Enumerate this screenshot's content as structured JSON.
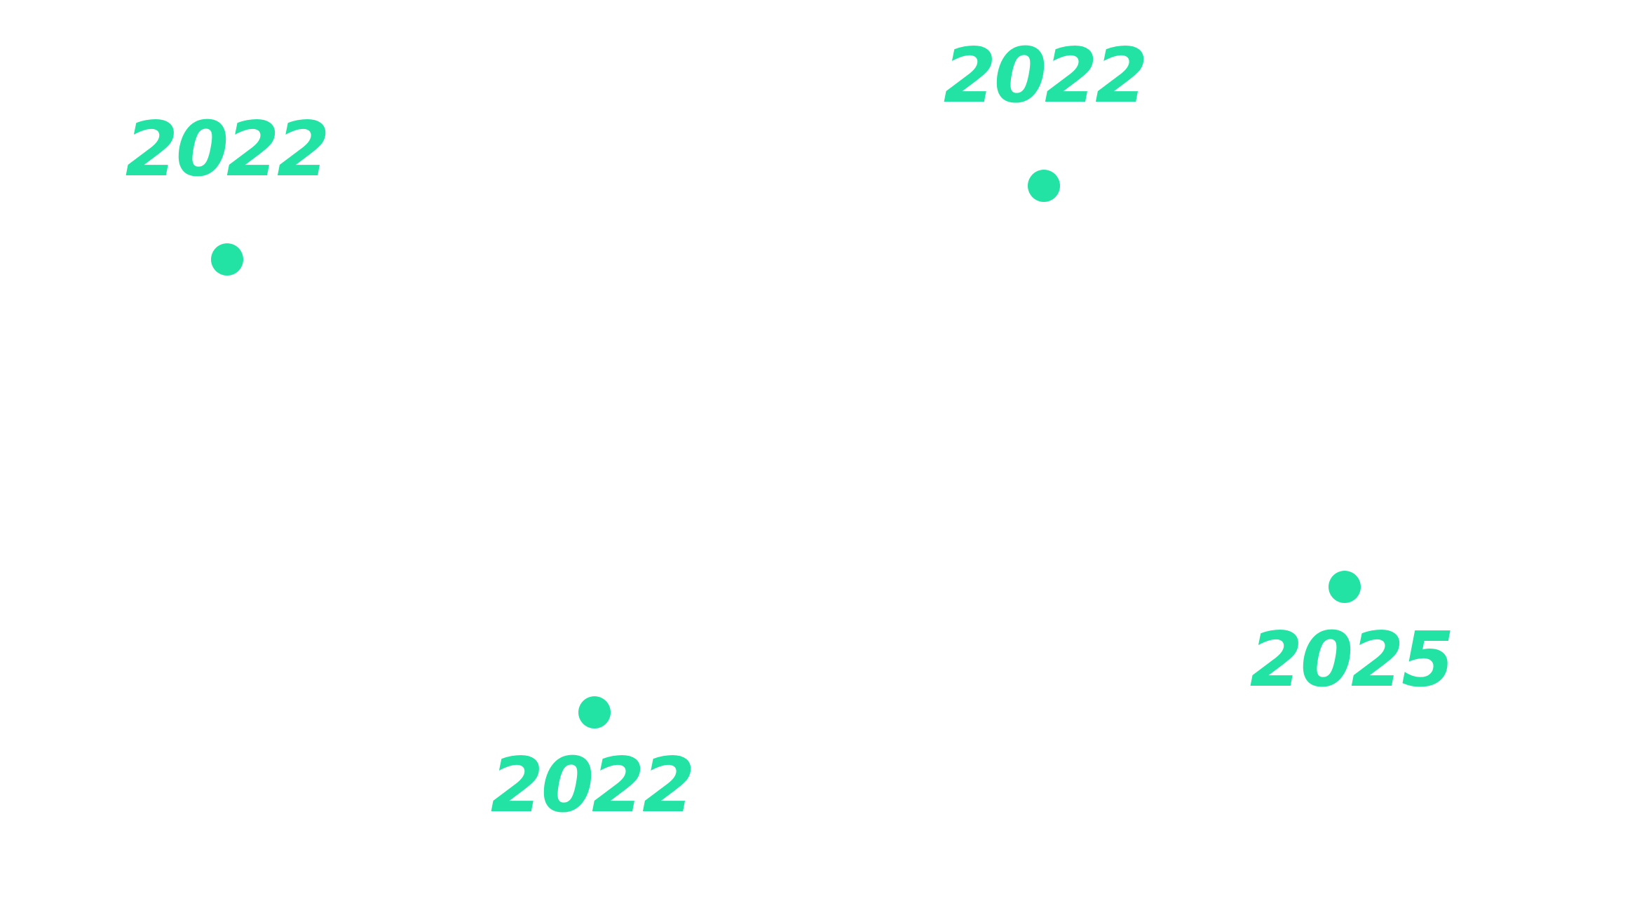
{
  "accent_color": "#22E3A4",
  "markers": [
    {
      "year": "2022"
    },
    {
      "year": "2022"
    },
    {
      "year": "2025"
    },
    {
      "year": "2022"
    }
  ]
}
